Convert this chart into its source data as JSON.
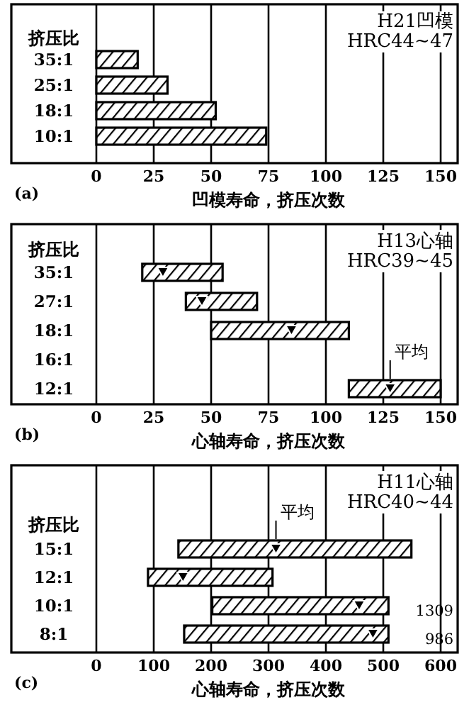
{
  "chart_data": [
    {
      "type": "bar",
      "orientation": "horizontal",
      "ylabel": "挤压比",
      "xlabel": "凹模寿命，挤压次数",
      "categories": [
        "35:1",
        "25:1",
        "18:1",
        "10:1"
      ],
      "series": [
        {
          "color": "#000000",
          "values": [
            18,
            31,
            52,
            74
          ]
        }
      ],
      "xlim": [
        0,
        150
      ],
      "xticks": [
        0,
        25,
        50,
        75,
        100,
        125,
        150
      ],
      "grid": "x",
      "annotations": [
        "(a)",
        "H21凹模",
        "HRC44~47"
      ]
    },
    {
      "type": "bar",
      "orientation": "horizontal",
      "ylabel": "挤压比",
      "xlabel": "心轴寿命，挤压次数",
      "categories": [
        "35:1",
        "27:1",
        "18:1",
        "16:1",
        "12:1"
      ],
      "series": [
        {
          "color": "#000000",
          "base": [
            20,
            39,
            50,
            null,
            110
          ],
          "values": [
            35,
            31,
            60,
            null,
            40
          ]
        },
        {
          "type": "scatter",
          "marker": "triangle",
          "color": "#000000",
          "values": [
            29,
            46,
            85,
            null,
            128
          ]
        }
      ],
      "xlim": [
        0,
        150
      ],
      "xticks": [
        0,
        25,
        50,
        75,
        100,
        125,
        150
      ],
      "grid": "x",
      "annotations": [
        "(b)",
        "H13心轴",
        "HRC39~45",
        {
          "text": "平均",
          "x": 128,
          "y": "12:1"
        }
      ]
    },
    {
      "type": "bar",
      "orientation": "horizontal",
      "ylabel": "挤压比",
      "xlabel": "心轴寿命，挤压次数",
      "categories": [
        "15:1",
        "12:1",
        "10:1",
        "8:1"
      ],
      "series": [
        {
          "color": "#000000",
          "base": [
            143,
            90,
            202,
            153
          ],
          "values": [
            406,
            217,
            307,
            356
          ]
        },
        {
          "type": "scatter",
          "marker": "triangle",
          "color": "#000000",
          "values": [
            313,
            151,
            458,
            482
          ]
        }
      ],
      "xlim": [
        0,
        600
      ],
      "xticks": [
        0,
        100,
        200,
        300,
        400,
        500,
        600
      ],
      "grid": "x",
      "annotations": [
        "(c)",
        "H11心轴",
        "HRC40~44",
        {
          "text": "平均",
          "x": 313,
          "y": "15:1"
        },
        "1309",
        "986"
      ]
    }
  ]
}
